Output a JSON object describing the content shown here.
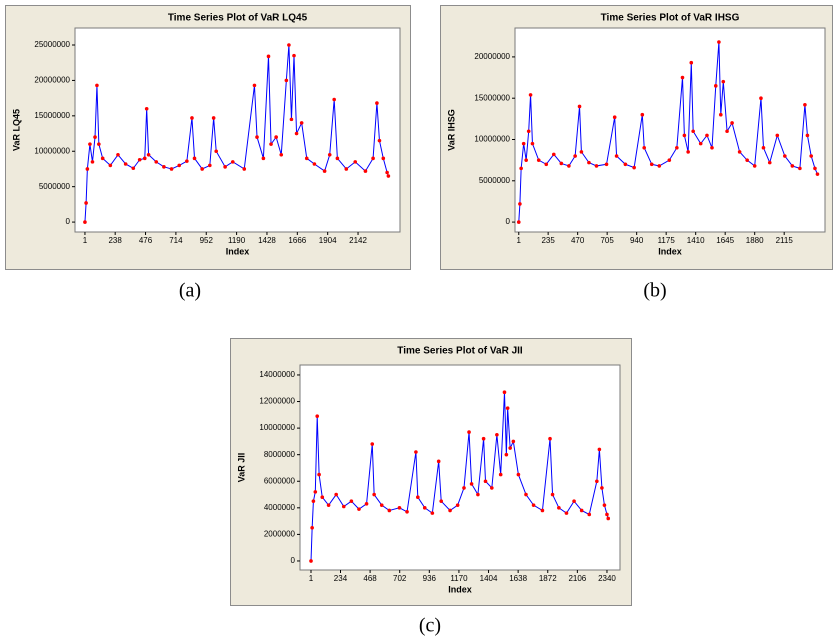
{
  "chart_data": [
    {
      "type": "line",
      "title": "Time Series Plot of VaR LQ45",
      "xlabel": "Index",
      "ylabel": "VaR LQ45",
      "caption": "(a)",
      "color": "#0000ff",
      "marker_color": "#ff0000",
      "xlim": [
        -77,
        2471
      ],
      "xticks": [
        1,
        238,
        476,
        714,
        952,
        1190,
        1428,
        1666,
        1904,
        2142
      ],
      "ylim": [
        -1400000,
        27400000
      ],
      "yticks": [
        0,
        5000000,
        10000000,
        15000000,
        20000000,
        25000000
      ],
      "x": [
        1,
        10,
        20,
        40,
        60,
        80,
        95,
        110,
        140,
        200,
        260,
        320,
        380,
        430,
        470,
        485,
        500,
        560,
        620,
        680,
        740,
        800,
        840,
        860,
        920,
        980,
        1010,
        1030,
        1100,
        1160,
        1250,
        1330,
        1350,
        1400,
        1440,
        1460,
        1500,
        1540,
        1580,
        1600,
        1620,
        1640,
        1660,
        1700,
        1740,
        1800,
        1880,
        1920,
        1955,
        1980,
        2050,
        2120,
        2200,
        2260,
        2290,
        2310,
        2340,
        2370,
        2380
      ],
      "values": [
        0,
        2700000,
        7500000,
        11000000,
        8500000,
        12000000,
        19300000,
        11000000,
        9000000,
        8000000,
        9500000,
        8200000,
        7600000,
        8800000,
        9000000,
        16000000,
        9500000,
        8500000,
        7800000,
        7500000,
        8000000,
        8600000,
        14700000,
        9000000,
        7500000,
        8000000,
        14700000,
        10000000,
        7800000,
        8500000,
        7500000,
        19300000,
        12000000,
        9000000,
        23400000,
        11000000,
        12000000,
        9500000,
        20000000,
        25000000,
        14500000,
        23500000,
        12500000,
        14000000,
        9000000,
        8200000,
        7200000,
        9500000,
        17300000,
        9000000,
        7500000,
        8500000,
        7200000,
        9000000,
        16800000,
        11500000,
        9000000,
        7000000,
        6500000
      ]
    },
    {
      "type": "line",
      "title": "Time Series Plot of VaR IHSG",
      "xlabel": "Index",
      "ylabel": "VaR IHSG",
      "caption": "(b)",
      "color": "#0000ff",
      "marker_color": "#ff0000",
      "xlim": [
        -29,
        2440
      ],
      "xticks": [
        1,
        235,
        470,
        705,
        940,
        1175,
        1410,
        1645,
        1880,
        2115
      ],
      "ylim": [
        -1200000,
        23500000
      ],
      "yticks": [
        0,
        5000000,
        10000000,
        15000000,
        20000000
      ],
      "x": [
        1,
        10,
        20,
        40,
        60,
        80,
        95,
        110,
        160,
        220,
        280,
        340,
        400,
        450,
        485,
        500,
        560,
        620,
        700,
        765,
        780,
        850,
        920,
        985,
        1000,
        1060,
        1120,
        1200,
        1260,
        1305,
        1320,
        1350,
        1375,
        1390,
        1450,
        1500,
        1540,
        1570,
        1595,
        1610,
        1630,
        1660,
        1700,
        1760,
        1820,
        1880,
        1930,
        1950,
        2000,
        2060,
        2120,
        2180,
        2240,
        2280,
        2300,
        2330,
        2360,
        2380
      ],
      "values": [
        0,
        2200000,
        6500000,
        9500000,
        7500000,
        11000000,
        15400000,
        9500000,
        7500000,
        7000000,
        8200000,
        7100000,
        6800000,
        8000000,
        14000000,
        8500000,
        7200000,
        6800000,
        7000000,
        12700000,
        8000000,
        7000000,
        6600000,
        13000000,
        9000000,
        7000000,
        6800000,
        7500000,
        9000000,
        17500000,
        10500000,
        8500000,
        19300000,
        11000000,
        9500000,
        10500000,
        9000000,
        16500000,
        21800000,
        13000000,
        17000000,
        11000000,
        12000000,
        8500000,
        7500000,
        6800000,
        15000000,
        9000000,
        7200000,
        10500000,
        8000000,
        6800000,
        6500000,
        14200000,
        10500000,
        8000000,
        6500000,
        5800000
      ]
    },
    {
      "type": "line",
      "title": "Time Series Plot of VaR JII",
      "xlabel": "Index",
      "ylabel": "VaR JII",
      "caption": "(c)",
      "color": "#0000ff",
      "marker_color": "#ff0000",
      "xlim": [
        -86,
        2443
      ],
      "xticks": [
        1,
        234,
        468,
        702,
        936,
        1170,
        1404,
        1638,
        1872,
        2106,
        2340
      ],
      "ylim": [
        -680000,
        14750000
      ],
      "yticks": [
        0,
        2000000,
        4000000,
        6000000,
        8000000,
        10000000,
        12000000,
        14000000
      ],
      "x": [
        1,
        10,
        20,
        35,
        50,
        65,
        90,
        140,
        200,
        260,
        320,
        380,
        440,
        485,
        500,
        560,
        620,
        700,
        760,
        830,
        845,
        900,
        960,
        1010,
        1030,
        1100,
        1160,
        1210,
        1250,
        1270,
        1320,
        1365,
        1380,
        1430,
        1470,
        1500,
        1530,
        1545,
        1555,
        1575,
        1600,
        1640,
        1700,
        1760,
        1830,
        1890,
        1910,
        1960,
        2020,
        2080,
        2140,
        2200,
        2260,
        2280,
        2300,
        2320,
        2340,
        2350
      ],
      "values": [
        0,
        2500000,
        4500000,
        5200000,
        10900000,
        6500000,
        4800000,
        4200000,
        5000000,
        4100000,
        4500000,
        3900000,
        4300000,
        8800000,
        5000000,
        4200000,
        3800000,
        4000000,
        3700000,
        8200000,
        4800000,
        4000000,
        3600000,
        7500000,
        4500000,
        3800000,
        4200000,
        5500000,
        9700000,
        5800000,
        5000000,
        9200000,
        6000000,
        5500000,
        9500000,
        6500000,
        12700000,
        8000000,
        11500000,
        8500000,
        9000000,
        6500000,
        5000000,
        4200000,
        3800000,
        9200000,
        5000000,
        4000000,
        3600000,
        4500000,
        3800000,
        3500000,
        6000000,
        8400000,
        5500000,
        4200000,
        3500000,
        3200000
      ]
    }
  ]
}
